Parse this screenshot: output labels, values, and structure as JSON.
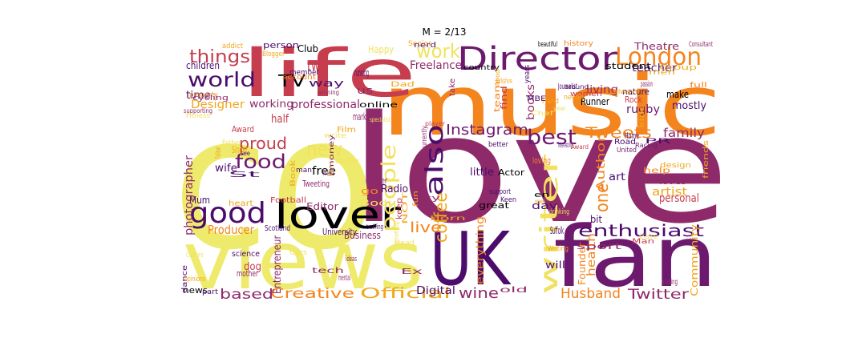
{
  "chart_data": {
    "type": "wordcloud",
    "title": "M = 2/13",
    "colormap": "inferno",
    "words": [
      {
        "text": "love",
        "color": "#8e2a6a"
      },
      {
        "text": "co",
        "color": "#eeeb6c"
      },
      {
        "text": "music",
        "color": "#f4841e"
      },
      {
        "text": "life",
        "color": "#c63d4d"
      },
      {
        "text": "views",
        "color": "#eeeb6c"
      },
      {
        "text": "UK",
        "color": "#4b0c6b"
      },
      {
        "text": "fan",
        "color": "#6d1a6e"
      },
      {
        "text": "Director",
        "color": "#6d1a6e"
      },
      {
        "text": "London",
        "color": "#f4841e"
      },
      {
        "text": "lover",
        "color": "#000004"
      },
      {
        "text": "good",
        "color": "#4b0c6b"
      },
      {
        "text": "writer",
        "color": "#f1e15e"
      },
      {
        "text": "also",
        "color": "#4b0c6b"
      },
      {
        "text": "world",
        "color": "#4b0c6b"
      },
      {
        "text": "food",
        "color": "#6d1a6e"
      },
      {
        "text": "things",
        "color": "#c63d4d"
      },
      {
        "text": "enthusiast",
        "color": "#4b0c6b"
      },
      {
        "text": "Instagram",
        "color": "#6d1a6e"
      },
      {
        "text": "Tweets",
        "color": "#f4841e"
      },
      {
        "text": "best",
        "color": "#6d1a6e"
      },
      {
        "text": "people",
        "color": "#f1e15e"
      },
      {
        "text": "coffee",
        "color": "#f1a61c"
      },
      {
        "text": "one",
        "color": "#f4841e"
      },
      {
        "text": "work",
        "color": "#f1e15e"
      },
      {
        "text": "proud",
        "color": "#c63d4d"
      },
      {
        "text": "new",
        "color": "#f1e15e"
      },
      {
        "text": "TV",
        "color": "#000004"
      },
      {
        "text": "Official",
        "color": "#f1a61c"
      },
      {
        "text": "Creative",
        "color": "#f4841e"
      },
      {
        "text": "based",
        "color": "#8e2a6a"
      },
      {
        "text": "wine",
        "color": "#8e2a6a"
      },
      {
        "text": "Husband",
        "color": "#f4841e"
      },
      {
        "text": "Twitter",
        "color": "#8e2a6a"
      },
      {
        "text": "live",
        "color": "#f4841e"
      },
      {
        "text": "Mum",
        "color": "#4b0c6b"
      },
      {
        "text": "Producer",
        "color": "#f4841e"
      },
      {
        "text": "family",
        "color": "#8e2a6a"
      },
      {
        "text": "Theatre",
        "color": "#8e2a6a"
      },
      {
        "text": "teacher",
        "color": "#4b0c6b"
      },
      {
        "text": "rugby",
        "color": "#6d1a6e"
      },
      {
        "text": "time",
        "color": "#4b0c6b"
      },
      {
        "text": "Designer",
        "color": "#f1a61c"
      },
      {
        "text": "professional",
        "color": "#8e2a6a"
      },
      {
        "text": "working",
        "color": "#8e2a6a"
      },
      {
        "text": "two",
        "color": "#c63d4d"
      },
      {
        "text": "Freelance",
        "color": "#8e2a6a"
      },
      {
        "text": "Club",
        "color": "#000004"
      },
      {
        "text": "Happy",
        "color": "#f1e15e"
      },
      {
        "text": "children",
        "color": "#4b0c6b"
      },
      {
        "text": "artist",
        "color": "#f1a61c"
      },
      {
        "text": "personal",
        "color": "#c63d4d"
      },
      {
        "text": "loves",
        "color": "#8e2a6a"
      },
      {
        "text": "art",
        "color": "#4b0c6b"
      },
      {
        "text": "Author",
        "color": "#f4841e"
      },
      {
        "text": "photographer",
        "color": "#8e2a6a"
      },
      {
        "text": "wife",
        "color": "#4b0c6b"
      },
      {
        "text": "free",
        "color": "#000004"
      },
      {
        "text": "dog",
        "color": "#c63d4d"
      },
      {
        "text": "news",
        "color": "#000004"
      },
      {
        "text": "Digital",
        "color": "#4b0c6b"
      },
      {
        "text": "Business",
        "color": "#8e2a6a"
      },
      {
        "text": "Radio",
        "color": "#4b0c6b"
      },
      {
        "text": "books",
        "color": "#8e2a6a"
      },
      {
        "text": "living",
        "color": "#8e2a6a"
      },
      {
        "text": "mostly",
        "color": "#4b0c6b"
      },
      {
        "text": "make",
        "color": "#000004"
      },
      {
        "text": "Runner",
        "color": "#000004"
      },
      {
        "text": "Rock",
        "color": "#c63d4d"
      },
      {
        "text": "nature",
        "color": "#4b0c6b"
      },
      {
        "text": "health",
        "color": "#f4841e"
      },
      {
        "text": "Founder",
        "color": "#f4841e"
      },
      {
        "text": "will",
        "color": "#4b0c6b"
      },
      {
        "text": "everything",
        "color": "#f4841e"
      },
      {
        "text": "Community",
        "color": "#f1a61c"
      },
      {
        "text": "Entrepreneur",
        "color": "#8e2a6a"
      },
      {
        "text": "marketing",
        "color": "#8e2a6a"
      },
      {
        "text": "Editor",
        "color": "#8e2a6a"
      },
      {
        "text": "little",
        "color": "#4b0c6b"
      },
      {
        "text": "half",
        "color": "#c63d4d"
      },
      {
        "text": "way",
        "color": "#4b0c6b"
      },
      {
        "text": "running",
        "color": "#4b0c6b"
      },
      {
        "text": "us",
        "color": "#8e2a6a"
      },
      {
        "text": "Dad",
        "color": "#f1a61c"
      },
      {
        "text": "student",
        "color": "#000004"
      },
      {
        "text": "Journalist",
        "color": "#4b0c6b"
      },
      {
        "text": "Road",
        "color": "#4b0c6b"
      },
      {
        "text": "Actor",
        "color": "#000004"
      },
      {
        "text": "loving",
        "color": "#f4841e"
      },
      {
        "text": "day",
        "color": "#4b0c6b"
      },
      {
        "text": "great",
        "color": "#000004"
      },
      {
        "text": "Suffolk",
        "color": "#4b0c6b"
      },
      {
        "text": "bit",
        "color": "#4b0c6b"
      },
      {
        "text": "go",
        "color": "#f4841e"
      },
      {
        "text": "keep",
        "color": "#c63d4d"
      },
      {
        "text": "owner",
        "color": "#8e2a6a"
      },
      {
        "text": "tech",
        "color": "#8e2a6a"
      },
      {
        "text": "mother",
        "color": "#8e2a6a"
      },
      {
        "text": "dance",
        "color": "#4b0c6b"
      },
      {
        "text": "Singer",
        "color": "#f1a61c"
      },
      {
        "text": "Film",
        "color": "#f1a61c"
      },
      {
        "text": "Award",
        "color": "#c63d4d"
      },
      {
        "text": "heart",
        "color": "#f1a61c"
      },
      {
        "text": "Football",
        "color": "#c63d4d"
      },
      {
        "text": "Tweeting",
        "color": "#8e2a6a"
      },
      {
        "text": "Follow",
        "color": "#f1a61c"
      },
      {
        "text": "Ex",
        "color": "#8e2a6a"
      },
      {
        "text": "making",
        "color": "#8e2a6a"
      },
      {
        "text": "sport",
        "color": "#8e2a6a"
      },
      {
        "text": "interesting",
        "color": "#4b0c6b"
      },
      {
        "text": "Home",
        "color": "#4b0c6b"
      },
      {
        "text": "PR",
        "color": "#4b0c6b"
      },
      {
        "text": "United",
        "color": "#6d1a6e"
      },
      {
        "text": "help",
        "color": "#f4841e"
      },
      {
        "text": "friends",
        "color": "#f1a61c"
      },
      {
        "text": "passion",
        "color": "#8e2a6a"
      },
      {
        "text": "full",
        "color": "#f4841e"
      },
      {
        "text": "Group",
        "color": "#f1a61c"
      },
      {
        "text": "Consultant",
        "color": "#8e2a6a"
      },
      {
        "text": "history",
        "color": "#f4841e"
      },
      {
        "text": "beautiful",
        "color": "#000004"
      },
      {
        "text": "Senior",
        "color": "#f1a61c"
      },
      {
        "text": "nerd",
        "color": "#4b0c6b"
      },
      {
        "text": "country",
        "color": "#000004"
      },
      {
        "text": "Yorkshire",
        "color": "#f1a61c"
      },
      {
        "text": "years",
        "color": "#4b0c6b"
      },
      {
        "text": "take",
        "color": "#8e2a6a"
      },
      {
        "text": "find",
        "color": "#c63d4d"
      },
      {
        "text": "team",
        "color": "#f4841e"
      },
      {
        "text": "currently",
        "color": "#8e2a6a"
      },
      {
        "text": "player",
        "color": "#c63d4d"
      },
      {
        "text": "better",
        "color": "#4b0c6b"
      },
      {
        "text": "addict",
        "color": "#f1a61c"
      },
      {
        "text": "person",
        "color": "#4b0c6b"
      },
      {
        "text": "Blogger",
        "color": "#f1a61c"
      },
      {
        "text": "member",
        "color": "#4b0c6b"
      },
      {
        "text": "account",
        "color": "#f4841e"
      },
      {
        "text": "property",
        "color": "#f4841e"
      },
      {
        "text": "cycling",
        "color": "#8e2a6a"
      },
      {
        "text": "supporting",
        "color": "#8e2a6a"
      },
      {
        "text": "winning",
        "color": "#8e2a6a"
      },
      {
        "text": "online",
        "color": "#000004"
      },
      {
        "text": "specialist",
        "color": "#f1e15e"
      },
      {
        "text": "write",
        "color": "#f1e15e"
      },
      {
        "text": "women",
        "color": "#c63d4d"
      },
      {
        "text": "Married",
        "color": "#f1e15e"
      },
      {
        "text": "University",
        "color": "#4b0c6b"
      },
      {
        "text": "training",
        "color": "#4b0c6b"
      },
      {
        "text": "City",
        "color": "#8e2a6a"
      },
      {
        "text": "support",
        "color": "#4b0c6b"
      },
      {
        "text": "science",
        "color": "#4b0c6b"
      },
      {
        "text": "opinions",
        "color": "#f1a61c"
      },
      {
        "text": "mental",
        "color": "#8e2a6a"
      },
      {
        "text": "old",
        "color": "#8e2a6a"
      },
      {
        "text": "design",
        "color": "#f1a61c"
      },
      {
        "text": "Racing",
        "color": "#6d1a6e"
      },
      {
        "text": "money",
        "color": "#6d1a6e"
      },
      {
        "text": "Scotland",
        "color": "#4b0c6b"
      },
      {
        "text": "Cars",
        "color": "#f1e15e"
      },
      {
        "text": "part",
        "color": "#4b0c6b"
      },
      {
        "text": "Book",
        "color": "#f1a61c"
      },
      {
        "text": "media",
        "color": "#8e2a6a"
      },
      {
        "text": "man",
        "color": "#4b0c6b"
      },
      {
        "text": "see",
        "color": "#4b0c6b"
      },
      {
        "text": "St",
        "color": "#4b0c6b"
      },
      {
        "text": "Father",
        "color": "#f1e15e"
      },
      {
        "text": "Body",
        "color": "#f1e15e"
      },
      {
        "text": "traveller",
        "color": "#f1e15e"
      },
      {
        "text": "Fitness",
        "color": "#f1e15e"
      },
      {
        "text": "Culture",
        "color": "#f1e15e"
      },
      {
        "text": "men",
        "color": "#f1a61c"
      },
      {
        "text": "always",
        "color": "#f1a61c"
      },
      {
        "text": "around",
        "color": "#4b0c6b"
      },
      {
        "text": "school",
        "color": "#f1a61c"
      },
      {
        "text": "ideas",
        "color": "#8e2a6a"
      },
      {
        "text": "fun",
        "color": "#f1a61c"
      },
      {
        "text": "Keen",
        "color": "#4b0c6b"
      },
      {
        "text": "open",
        "color": "#f1a61c"
      },
      {
        "text": "en",
        "color": "#000004"
      },
      {
        "text": "born",
        "color": "#f1a61c"
      },
      {
        "text": "Something",
        "color": "#f1e15e"
      },
      {
        "text": "needs",
        "color": "#f1a61c"
      },
      {
        "text": "Hand",
        "color": "#f1a61c"
      },
      {
        "text": "Chef",
        "color": "#f1e15e"
      },
      {
        "text": "Head",
        "color": "#f1e15e"
      },
      {
        "text": "Award",
        "color": "#c63d4d"
      },
      {
        "text": "NOT",
        "color": "#f1a61c"
      },
      {
        "text": "year",
        "color": "#f1e15e"
      },
      {
        "text": "drinking",
        "color": "#f1e15e"
      },
      {
        "text": "MBE",
        "color": "#4b0c6b"
      },
      {
        "text": "kids",
        "color": "#f1a61c"
      },
      {
        "text": "Writing",
        "color": "#f1a61c"
      },
      {
        "text": "Man",
        "color": "#c63d4d"
      },
      {
        "text": "Care",
        "color": "#f1e15e"
      },
      {
        "text": "Food",
        "color": "#f1a61c"
      },
      {
        "text": "thing",
        "color": "#f1e15e"
      }
    ]
  }
}
